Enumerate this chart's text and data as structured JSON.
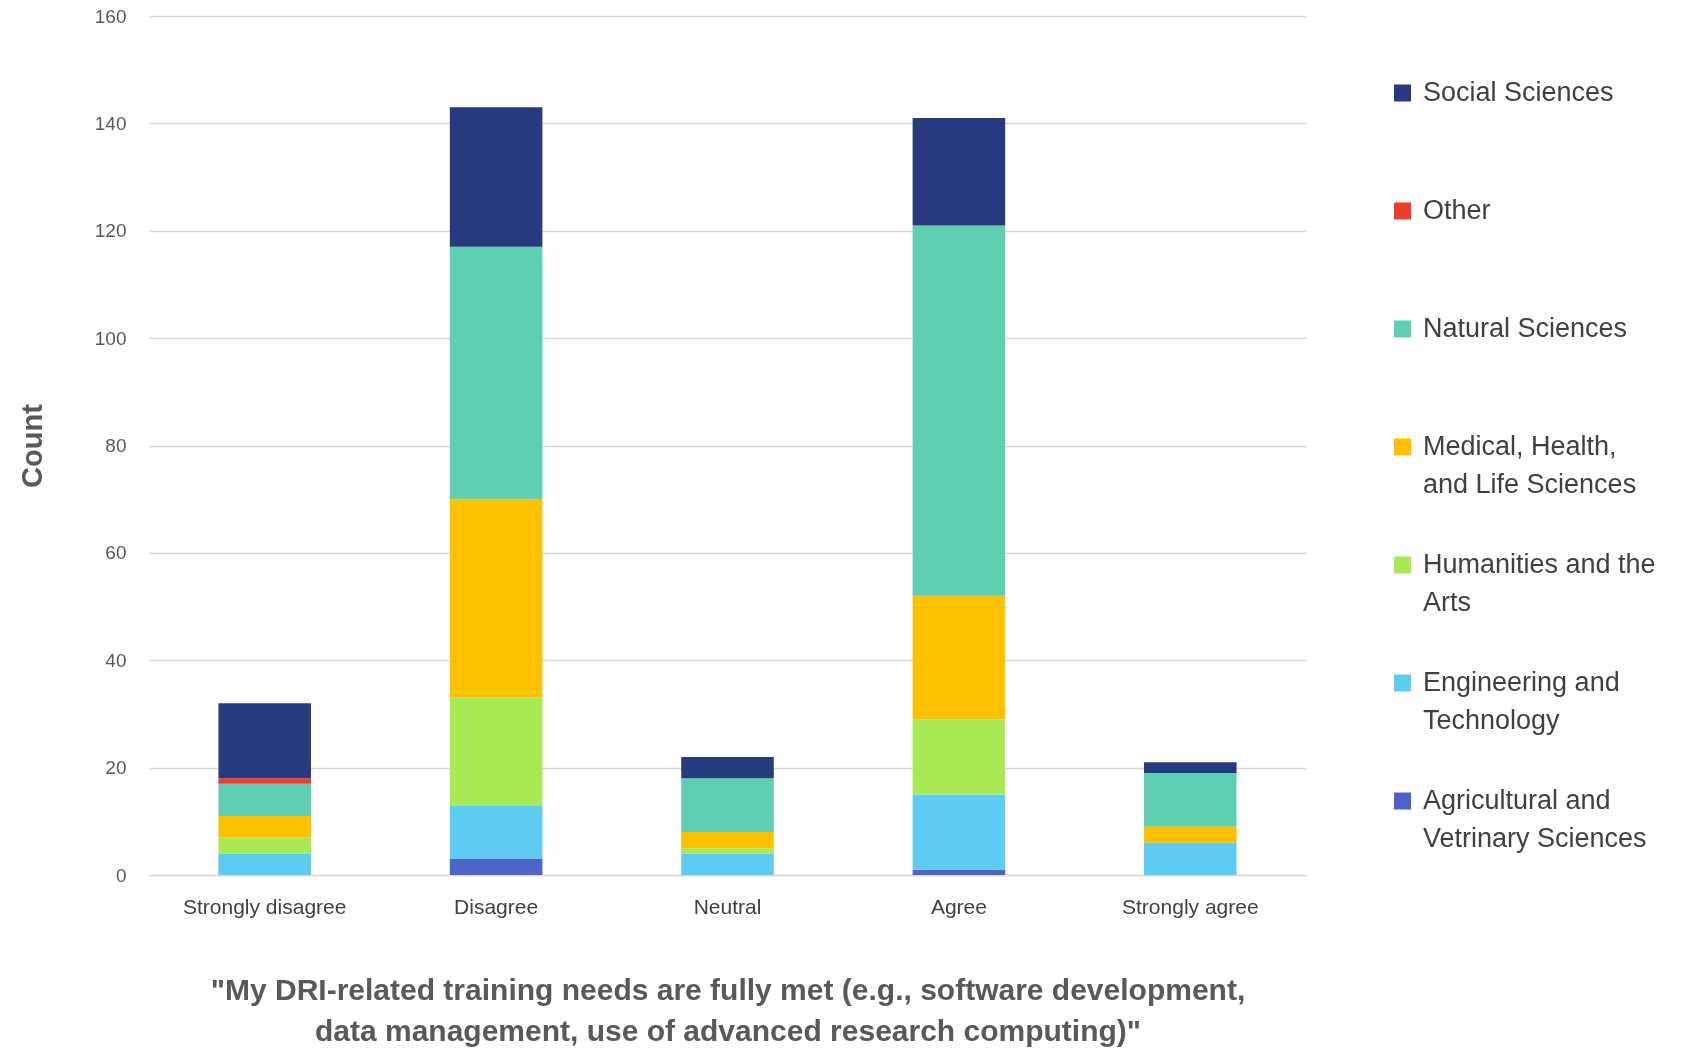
{
  "chart_data": {
    "type": "bar",
    "stacked": true,
    "xlabel": "\"My DRI-related training needs are fully met (e.g., software development, data management, use of advanced research computing)\"",
    "ylabel": "Count",
    "categories": [
      "Strongly disagree",
      "Disagree",
      "Neutral",
      "Agree",
      "Strongly agree"
    ],
    "series": [
      {
        "name": "Agricultural and Vetrinary Sciences",
        "color": "#4d63c8",
        "values": [
          0,
          3,
          0,
          1,
          0
        ]
      },
      {
        "name": "Engineering and Technology",
        "color": "#5ecbf2",
        "values": [
          4,
          10,
          4,
          14,
          6
        ]
      },
      {
        "name": "Humanities and the Arts",
        "color": "#a9e954",
        "values": [
          3,
          20,
          1,
          14,
          0
        ]
      },
      {
        "name": "Medical, Health, and Life Sciences",
        "color": "#ffc000",
        "values": [
          4,
          37,
          3,
          23,
          3
        ]
      },
      {
        "name": "Natural Sciences",
        "color": "#5ecfb0",
        "values": [
          6,
          47,
          10,
          69,
          10
        ]
      },
      {
        "name": "Other",
        "color": "#ee3e27",
        "values": [
          1,
          0,
          0,
          0,
          0
        ]
      },
      {
        "name": "Social Sciences",
        "color": "#283a7f",
        "values": [
          14,
          26,
          4,
          20,
          2
        ]
      }
    ],
    "ylim": [
      0,
      160
    ],
    "yticks": [
      0,
      20,
      40,
      60,
      80,
      100,
      120,
      140,
      160
    ],
    "grid": "y",
    "legend": "right"
  }
}
